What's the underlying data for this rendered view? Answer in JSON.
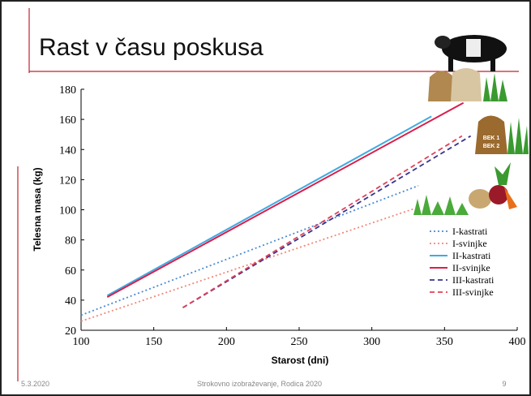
{
  "slide": {
    "title": "Rast v času poskusa",
    "date": "5.3.2020",
    "footer": "Strokovno izobraževanje, Rodica 2020",
    "page": "9",
    "sack_labels": [
      "BEK 1",
      "BEK 2"
    ]
  },
  "chart_data": {
    "type": "line",
    "x_label": "Starost (dni)",
    "y_label": "Telesna masa (kg)",
    "xlim": [
      100,
      400
    ],
    "xticks": [
      100,
      150,
      200,
      250,
      300,
      350,
      400
    ],
    "ylim": [
      20,
      180
    ],
    "yticks": [
      20,
      40,
      60,
      80,
      100,
      120,
      140,
      160,
      180
    ],
    "series": [
      {
        "name": "I-kastrati",
        "color": "#4a8ad6",
        "style": "dotted",
        "x": [
          100,
          332
        ],
        "values": [
          30,
          116
        ]
      },
      {
        "name": "I-svinjke",
        "color": "#f08878",
        "style": "dotted",
        "x": [
          100,
          330
        ],
        "values": [
          26,
          101
        ]
      },
      {
        "name": "II-kastrati",
        "color": "#3faae2",
        "style": "solid",
        "x": [
          118,
          341
        ],
        "values": [
          43,
          162
        ]
      },
      {
        "name": "II-svinjke",
        "color": "#d8204c",
        "style": "solid",
        "x": [
          118,
          363
        ],
        "values": [
          42,
          171
        ]
      },
      {
        "name": "III-kastrati",
        "color": "#35358a",
        "style": "dashed",
        "x": [
          170,
          368
        ],
        "values": [
          35,
          149
        ]
      },
      {
        "name": "III-svinjke",
        "color": "#e0405a",
        "style": "dashed",
        "x": [
          170,
          362
        ],
        "values": [
          35,
          149
        ]
      }
    ]
  }
}
